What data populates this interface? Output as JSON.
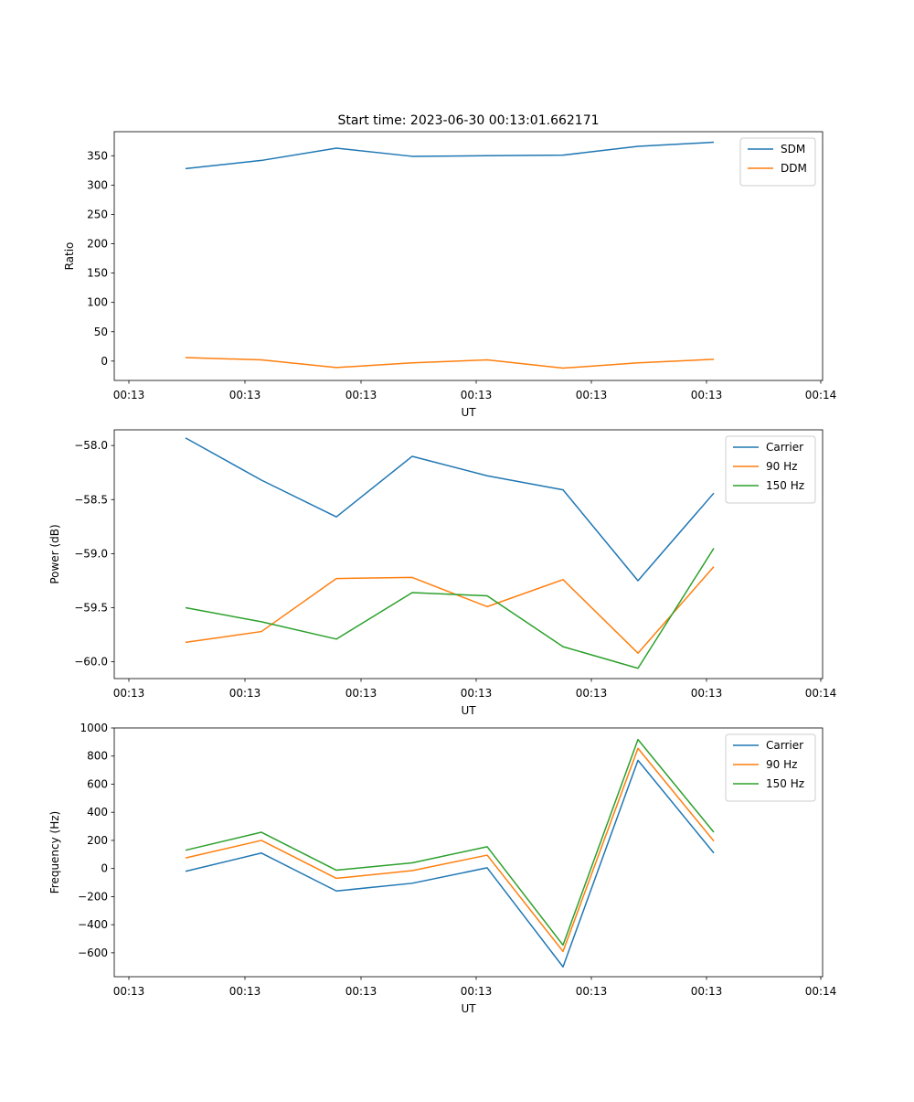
{
  "title": "Start time: 2023-06-30 00:13:01.662171",
  "chart_data": [
    {
      "type": "line",
      "title": "Start time: 2023-06-30 00:13:01.662171",
      "xlabel": "UT",
      "ylabel": "Ratio",
      "x_tick_labels": [
        "00:13",
        "00:13",
        "00:13",
        "00:13",
        "00:13",
        "00:13",
        "00:14"
      ],
      "y_ticks": [
        0,
        50,
        100,
        150,
        200,
        250,
        300,
        350
      ],
      "ylim": [
        -33,
        391
      ],
      "legend_placement": "top-right",
      "series": [
        {
          "name": "SDM",
          "color": "#1f77b4",
          "values": [
            328,
            342,
            363,
            349,
            350,
            351,
            366,
            373
          ]
        },
        {
          "name": "DDM",
          "color": "#ff7f0e",
          "values": [
            6,
            2,
            -11,
            -3,
            2,
            -12,
            -3,
            3
          ]
        }
      ]
    },
    {
      "type": "line",
      "title": "",
      "xlabel": "UT",
      "ylabel": "Power (dB)",
      "x_tick_labels": [
        "00:13",
        "00:13",
        "00:13",
        "00:13",
        "00:13",
        "00:13",
        "00:14"
      ],
      "y_ticks": [
        -60.0,
        -59.5,
        -59.0,
        -58.5,
        -58.0
      ],
      "y_tick_labels": [
        "−60.0",
        "−59.5",
        "−59.0",
        "−58.5",
        "−58.0"
      ],
      "ylim": [
        -60.155,
        -57.855
      ],
      "legend_placement": "top-right",
      "series": [
        {
          "name": "Carrier",
          "color": "#1f77b4",
          "values": [
            -57.93,
            -58.32,
            -58.66,
            -58.1,
            -58.28,
            -58.41,
            -59.25,
            -58.44
          ]
        },
        {
          "name": "90 Hz",
          "color": "#ff7f0e",
          "values": [
            -59.82,
            -59.72,
            -59.23,
            -59.22,
            -59.49,
            -59.24,
            -59.92,
            -59.12
          ]
        },
        {
          "name": "150 Hz",
          "color": "#2ca02c",
          "values": [
            -59.5,
            -59.63,
            -59.79,
            -59.36,
            -59.39,
            -59.86,
            -60.06,
            -58.95
          ]
        }
      ]
    },
    {
      "type": "line",
      "title": "",
      "xlabel": "UT",
      "ylabel": "Frequency (Hz)",
      "x_tick_labels": [
        "00:13",
        "00:13",
        "00:13",
        "00:13",
        "00:13",
        "00:13",
        "00:14"
      ],
      "y_ticks": [
        -600,
        -400,
        -200,
        0,
        200,
        400,
        600,
        800,
        1000
      ],
      "y_tick_labels": [
        "−600",
        "−400",
        "−200",
        "0",
        "200",
        "400",
        "600",
        "800",
        "1000"
      ],
      "ylim": [
        -770,
        1000
      ],
      "legend_placement": "top-right",
      "series": [
        {
          "name": "Carrier",
          "color": "#1f77b4",
          "values": [
            -20,
            110,
            -160,
            -105,
            5,
            -700,
            770,
            110
          ]
        },
        {
          "name": "90 Hz",
          "color": "#ff7f0e",
          "values": [
            75,
            200,
            -70,
            -15,
            95,
            -590,
            855,
            195
          ]
        },
        {
          "name": "150 Hz",
          "color": "#2ca02c",
          "values": [
            130,
            258,
            -12,
            40,
            155,
            -545,
            918,
            258
          ]
        }
      ]
    }
  ]
}
